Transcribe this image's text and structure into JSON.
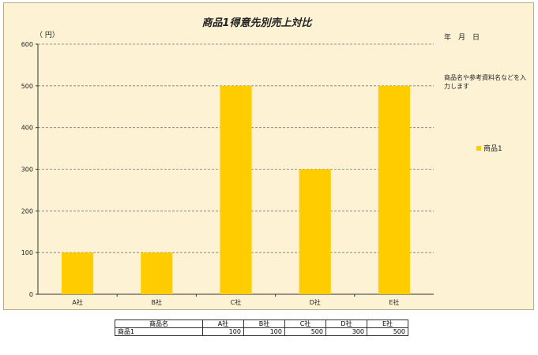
{
  "chart_data": {
    "type": "bar",
    "title": "商品1得意先別売上対比",
    "ylabel": "（ 円）",
    "categories": [
      "A社",
      "B社",
      "C社",
      "D社",
      "E社"
    ],
    "series": [
      {
        "name": "商品1",
        "values": [
          100,
          100,
          500,
          300,
          500
        ],
        "color": "#ffcc00"
      }
    ],
    "ylim": [
      0,
      600
    ],
    "yticks": [
      "0",
      "100",
      "200",
      "300",
      "400",
      "500",
      "600"
    ],
    "grid": true,
    "legend": "right"
  },
  "date_label": "年　月　日",
  "note": "商品名や参考資料名などを入力します",
  "table": {
    "header": [
      "商品名",
      "A社",
      "B社",
      "C社",
      "D社",
      "E社"
    ],
    "rows": [
      [
        "商品1",
        "100",
        "100",
        "500",
        "300",
        "500"
      ]
    ]
  }
}
